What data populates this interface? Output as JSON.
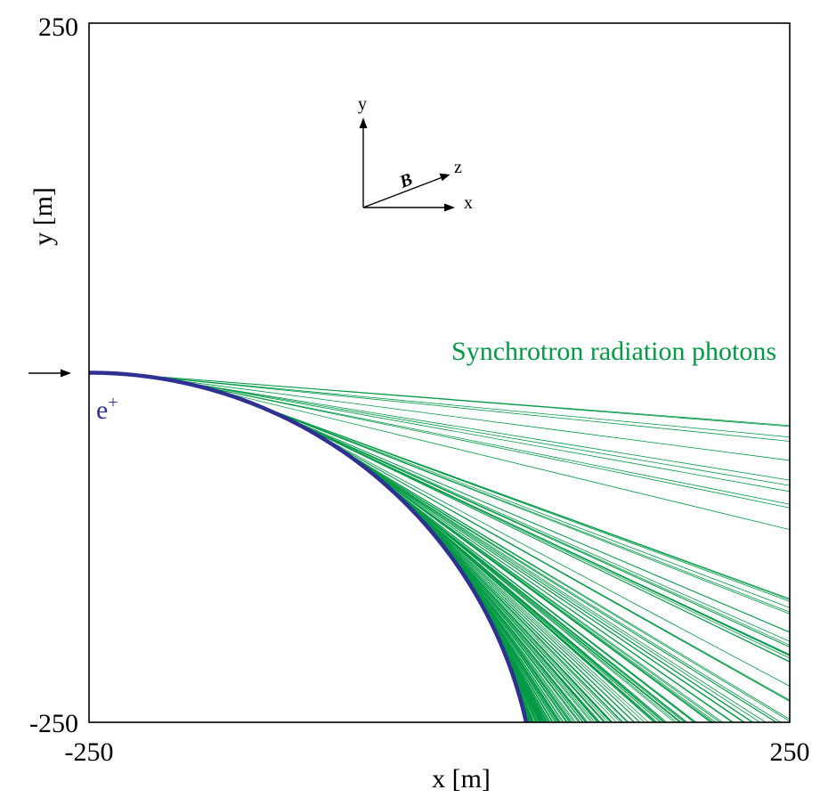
{
  "chart_data": {
    "type": "line",
    "title": "",
    "xlabel": "x [m]",
    "ylabel": "y [m]",
    "xlim": [
      -250,
      250
    ],
    "ylim": [
      -250,
      250
    ],
    "x_ticks": [
      "-250",
      "250"
    ],
    "y_ticks": [
      "250",
      "-250"
    ],
    "grid": false,
    "series": [
      {
        "name": "e+",
        "color": "#2e3192",
        "description_points": {
          "start": [
            -250,
            0
          ],
          "end": [
            70,
            -250
          ]
        },
        "orbit_radius_m": 319.6,
        "orbit_center": [
          -250,
          -319.6
        ]
      }
    ],
    "annotations": {
      "photon_label": "Synchrotron radiation photons",
      "positron_label": "e",
      "positron_charge": "+",
      "field_label": "B",
      "axis_y": "y",
      "axis_x": "x",
      "axis_z": "z"
    },
    "photon_color": "#009944",
    "photon_count": 260
  }
}
